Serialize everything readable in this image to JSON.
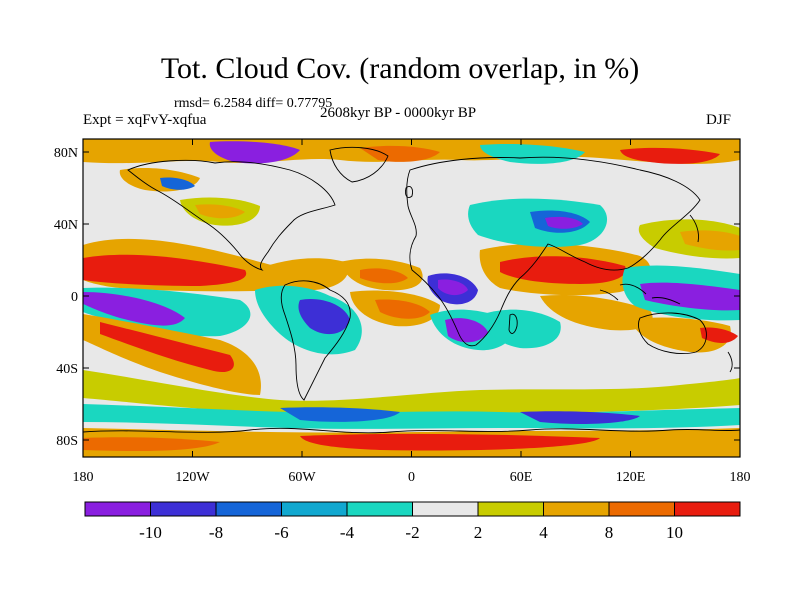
{
  "title": "Tot. Cloud Cov. (random overlap, in %)",
  "stats": "rmsd= 6.2584 diff= 0.77795",
  "experiment": "Expt = xqFvY-xqfua",
  "period": "2608kyr BP - 0000kyr BP",
  "season": "DJF",
  "axes": {
    "y_ticks": [
      "80N",
      "40N",
      "0",
      "40S",
      "80S"
    ],
    "x_ticks": [
      "180",
      "120W",
      "60W",
      "0",
      "60E",
      "120E",
      "180"
    ]
  },
  "colorbar": {
    "labels": [
      "-10",
      "-8",
      "-6",
      "-4",
      "-2",
      "2",
      "4",
      "8",
      "10"
    ],
    "colors": [
      "#8a1fe0",
      "#3d2fd6",
      "#1565d8",
      "#11a8d0",
      "#1ad7c0",
      "#e8e8e8",
      "#c8cc00",
      "#e6a400",
      "#ec6a00",
      "#e81c0e"
    ]
  },
  "map": {
    "ocean_background": "#e8e8e8",
    "coastline_color": "#000000"
  }
}
